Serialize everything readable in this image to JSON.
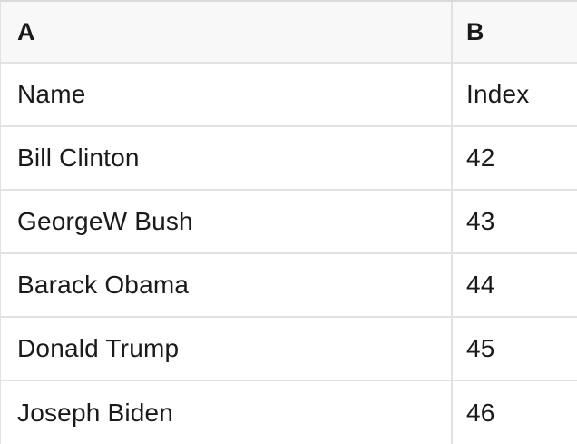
{
  "colors": {
    "header_background": "#f8f8f8",
    "row_background": "#ffffff",
    "grid_border": "#e2e2e2",
    "top_border": "#d9d9d9",
    "text": "#1a1a1a"
  },
  "spreadsheet": {
    "column_headers": {
      "a": "A",
      "b": "B"
    },
    "field_row": {
      "name": "Name",
      "index": "Index"
    },
    "rows": [
      {
        "name": "Bill Clinton",
        "index": "42"
      },
      {
        "name": "GeorgeW Bush",
        "index": "43"
      },
      {
        "name": "Barack Obama",
        "index": "44"
      },
      {
        "name": "Donald Trump",
        "index": "45"
      },
      {
        "name": "Joseph Biden",
        "index": "46"
      }
    ]
  }
}
